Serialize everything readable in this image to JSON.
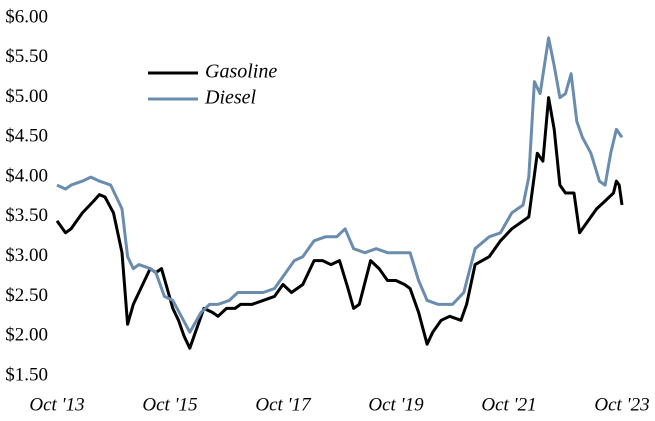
{
  "chart_data": {
    "type": "line",
    "xlim": [
      2013.75,
      2023.75
    ],
    "xticks": [
      {
        "value": 2013.75,
        "label": "Oct '13"
      },
      {
        "value": 2015.75,
        "label": "Oct '15"
      },
      {
        "value": 2017.75,
        "label": "Oct '17"
      },
      {
        "value": 2019.75,
        "label": "Oct '19"
      },
      {
        "value": 2021.75,
        "label": "Oct '21"
      },
      {
        "value": 2023.75,
        "label": "Oct '23"
      }
    ],
    "ylim": [
      1.5,
      6
    ],
    "yticks": [
      {
        "value": 1.5,
        "label": "$1.50"
      },
      {
        "value": 2,
        "label": "$2.00"
      },
      {
        "value": 2.5,
        "label": "$2.50"
      },
      {
        "value": 3,
        "label": "$3.00"
      },
      {
        "value": 3.5,
        "label": "$3.50"
      },
      {
        "value": 4,
        "label": "$4.00"
      },
      {
        "value": 4.5,
        "label": "$4.50"
      },
      {
        "value": 5,
        "label": "$5.00"
      },
      {
        "value": 5.5,
        "label": "$5.50"
      },
      {
        "value": 6,
        "label": "$6.00"
      }
    ],
    "grid": false,
    "legend": "upper left",
    "series": [
      {
        "name": "Gasoline",
        "color": "#000000",
        "x": [
          2013.75,
          2013.9,
          2014.0,
          2014.2,
          2014.4,
          2014.5,
          2014.6,
          2014.75,
          2014.9,
          2015.0,
          2015.1,
          2015.2,
          2015.4,
          2015.5,
          2015.6,
          2015.7,
          2015.8,
          2015.9,
          2016.0,
          2016.1,
          2016.2,
          2016.35,
          2016.5,
          2016.6,
          2016.75,
          2016.9,
          2017.0,
          2017.2,
          2017.4,
          2017.6,
          2017.75,
          2017.9,
          2018.1,
          2018.3,
          2018.45,
          2018.6,
          2018.75,
          2018.9,
          2019.0,
          2019.1,
          2019.3,
          2019.45,
          2019.6,
          2019.75,
          2019.9,
          2020.0,
          2020.15,
          2020.3,
          2020.4,
          2020.55,
          2020.7,
          2020.9,
          2021.0,
          2021.15,
          2021.4,
          2021.6,
          2021.8,
          2022.0,
          2022.1,
          2022.25,
          2022.35,
          2022.45,
          2022.55,
          2022.65,
          2022.75,
          2022.9,
          2023.0,
          2023.1,
          2023.3,
          2023.45,
          2023.6,
          2023.65,
          2023.7,
          2023.75
        ],
        "values": [
          3.45,
          3.3,
          3.35,
          3.55,
          3.7,
          3.78,
          3.75,
          3.55,
          3.05,
          2.15,
          2.4,
          2.55,
          2.85,
          2.8,
          2.85,
          2.6,
          2.35,
          2.2,
          2.0,
          1.85,
          2.05,
          2.35,
          2.3,
          2.25,
          2.35,
          2.35,
          2.4,
          2.4,
          2.45,
          2.5,
          2.65,
          2.55,
          2.65,
          2.95,
          2.95,
          2.9,
          2.95,
          2.6,
          2.35,
          2.4,
          2.95,
          2.85,
          2.7,
          2.7,
          2.65,
          2.6,
          2.3,
          1.9,
          2.05,
          2.2,
          2.25,
          2.2,
          2.4,
          2.9,
          3.0,
          3.2,
          3.35,
          3.45,
          3.5,
          4.3,
          4.2,
          5.0,
          4.6,
          3.9,
          3.8,
          3.8,
          3.3,
          3.4,
          3.6,
          3.7,
          3.8,
          3.95,
          3.9,
          3.65
        ]
      },
      {
        "name": "Diesel",
        "color": "#6a8caf",
        "x": [
          2013.75,
          2013.9,
          2014.0,
          2014.2,
          2014.35,
          2014.5,
          2014.7,
          2014.9,
          2015.0,
          2015.1,
          2015.2,
          2015.4,
          2015.5,
          2015.65,
          2015.8,
          2015.95,
          2016.1,
          2016.3,
          2016.45,
          2016.6,
          2016.8,
          2016.95,
          2017.2,
          2017.4,
          2017.6,
          2017.8,
          2017.95,
          2018.1,
          2018.3,
          2018.5,
          2018.7,
          2018.85,
          2019.0,
          2019.2,
          2019.4,
          2019.6,
          2019.8,
          2020.0,
          2020.15,
          2020.3,
          2020.5,
          2020.75,
          2020.95,
          2021.15,
          2021.4,
          2021.6,
          2021.8,
          2022.0,
          2022.1,
          2022.2,
          2022.3,
          2022.45,
          2022.55,
          2022.65,
          2022.75,
          2022.85,
          2022.95,
          2023.05,
          2023.2,
          2023.35,
          2023.45,
          2023.55,
          2023.65,
          2023.7,
          2023.75
        ],
        "values": [
          3.9,
          3.85,
          3.9,
          3.95,
          4.0,
          3.95,
          3.9,
          3.6,
          3.0,
          2.85,
          2.9,
          2.85,
          2.8,
          2.5,
          2.45,
          2.25,
          2.05,
          2.3,
          2.4,
          2.4,
          2.45,
          2.55,
          2.55,
          2.55,
          2.6,
          2.8,
          2.95,
          3.0,
          3.2,
          3.25,
          3.25,
          3.35,
          3.1,
          3.05,
          3.1,
          3.05,
          3.05,
          3.05,
          2.7,
          2.45,
          2.4,
          2.4,
          2.55,
          3.1,
          3.25,
          3.3,
          3.55,
          3.65,
          4.0,
          5.2,
          5.05,
          5.75,
          5.4,
          5.0,
          5.05,
          5.3,
          4.7,
          4.5,
          4.3,
          3.95,
          3.9,
          4.3,
          4.6,
          4.55,
          4.5
        ]
      }
    ]
  }
}
